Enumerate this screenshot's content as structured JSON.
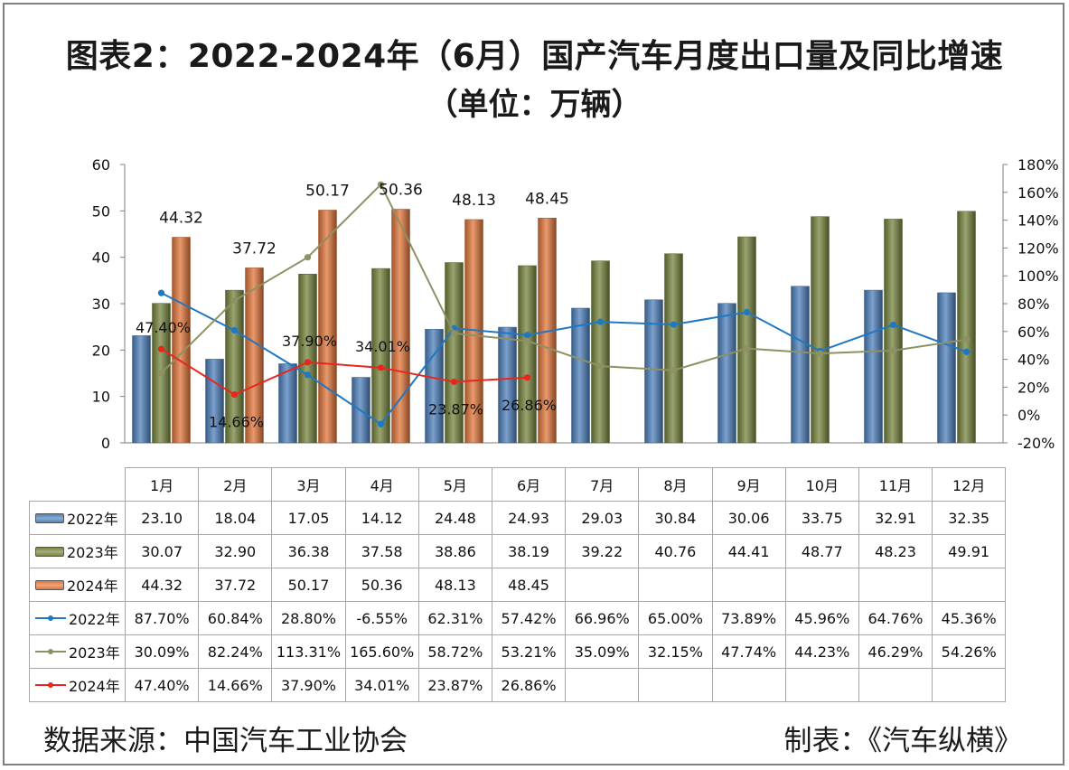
{
  "title": "图表2：2022-2024年（6月）国产汽车月度出口量及同比增速",
  "subtitle": "（单位：万辆）",
  "footer": {
    "source": "数据来源：中国汽车工业协会",
    "maker": "制表：《汽车纵横》"
  },
  "chart_data": {
    "type": "bar",
    "categories": [
      "1月",
      "2月",
      "3月",
      "4月",
      "5月",
      "6月",
      "7月",
      "8月",
      "9月",
      "10月",
      "11月",
      "12月"
    ],
    "left_axis": {
      "ylim": [
        0,
        60
      ],
      "ticks": [
        "0",
        "10",
        "20",
        "30",
        "40",
        "50",
        "60"
      ]
    },
    "right_axis": {
      "ylim": [
        -20,
        180
      ],
      "unit": "%",
      "ticks": [
        "-20%",
        "0%",
        "20%",
        "40%",
        "60%",
        "80%",
        "100%",
        "120%",
        "140%",
        "160%",
        "180%"
      ]
    },
    "grid": false,
    "legend": "table",
    "bar_series": [
      {
        "name": "2022年",
        "color": "#4f81bd",
        "values": [
          23.1,
          18.04,
          17.05,
          14.12,
          24.48,
          24.93,
          29.03,
          30.84,
          30.06,
          33.75,
          32.91,
          32.35
        ],
        "labels": [
          "23.10",
          "18.04",
          "17.05",
          "14.12",
          "24.48",
          "24.93",
          "29.03",
          "30.84",
          "30.06",
          "33.75",
          "32.91",
          "32.35"
        ]
      },
      {
        "name": "2023年",
        "color": "#77853f",
        "values": [
          30.07,
          32.9,
          36.38,
          37.58,
          38.86,
          38.19,
          39.22,
          40.76,
          44.41,
          48.77,
          48.23,
          49.91
        ],
        "labels": [
          "30.07",
          "32.90",
          "36.38",
          "37.58",
          "38.86",
          "38.19",
          "39.22",
          "40.76",
          "44.41",
          "48.77",
          "48.23",
          "49.91"
        ]
      },
      {
        "name": "2024年",
        "color": "#e2773a",
        "values": [
          44.32,
          37.72,
          50.17,
          50.36,
          48.13,
          48.45
        ],
        "labels": [
          "44.32",
          "37.72",
          "50.17",
          "50.36",
          "48.13",
          "48.45"
        ]
      }
    ],
    "line_series": [
      {
        "name": "2022年",
        "color": "#1f78c1",
        "values": [
          87.7,
          60.84,
          28.8,
          -6.55,
          62.31,
          57.42,
          66.96,
          65.0,
          73.89,
          45.96,
          64.76,
          45.36
        ],
        "labels": [
          "87.70%",
          "60.84%",
          "28.80%",
          "-6.55%",
          "62.31%",
          "57.42%",
          "66.96%",
          "65.00%",
          "73.89%",
          "45.96%",
          "64.76%",
          "45.36%"
        ]
      },
      {
        "name": "2023年",
        "color": "#8e9163",
        "values": [
          30.09,
          82.24,
          113.31,
          165.6,
          58.72,
          53.21,
          35.09,
          32.15,
          47.74,
          44.23,
          46.29,
          54.26
        ],
        "labels": [
          "30.09%",
          "82.24%",
          "113.31%",
          "165.60%",
          "58.72%",
          "53.21%",
          "35.09%",
          "32.15%",
          "47.74%",
          "44.23%",
          "46.29%",
          "54.26%"
        ]
      },
      {
        "name": "2024年",
        "color": "#e8261c",
        "values": [
          47.4,
          14.66,
          37.9,
          34.01,
          23.87,
          26.86
        ],
        "labels": [
          "47.40%",
          "14.66%",
          "37.90%",
          "34.01%",
          "23.87%",
          "26.86%"
        ]
      }
    ]
  }
}
